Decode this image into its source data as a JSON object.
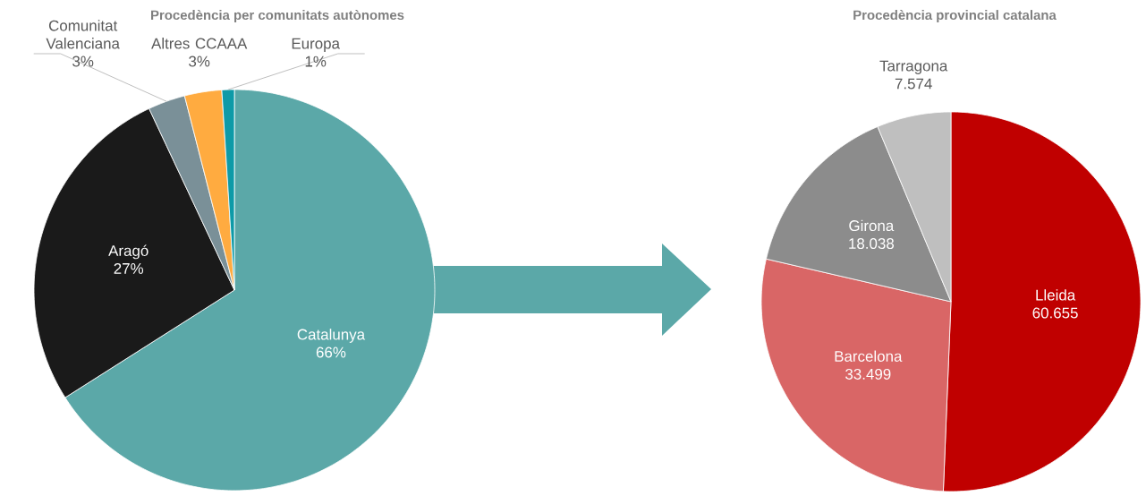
{
  "chart_data": [
    {
      "type": "pie",
      "title": "Procedència per comunitats autònomes",
      "categories": [
        "Catalunya",
        "Aragó",
        "Comunitat Valenciana",
        "Altres CCAAA",
        "Europa"
      ],
      "values": [
        66,
        27,
        3,
        3,
        1
      ],
      "value_labels": [
        "66%",
        "27%",
        "3%",
        "3%",
        "1%"
      ],
      "colors": [
        "#5ba8a8",
        "#1a1a1a",
        "#7a9098",
        "#ffab40",
        "#0e9aa7"
      ]
    },
    {
      "type": "pie",
      "title": "Procedència provincial catalana",
      "categories": [
        "Lleida",
        "Barcelona",
        "Girona",
        "Tarragona"
      ],
      "values": [
        60655,
        33499,
        18038,
        7574
      ],
      "value_labels": [
        "60.655",
        "33.499",
        "18.038",
        "7.574"
      ],
      "colors": [
        "#c00000",
        "#d96666",
        "#8c8c8c",
        "#bfbfbf"
      ]
    }
  ]
}
